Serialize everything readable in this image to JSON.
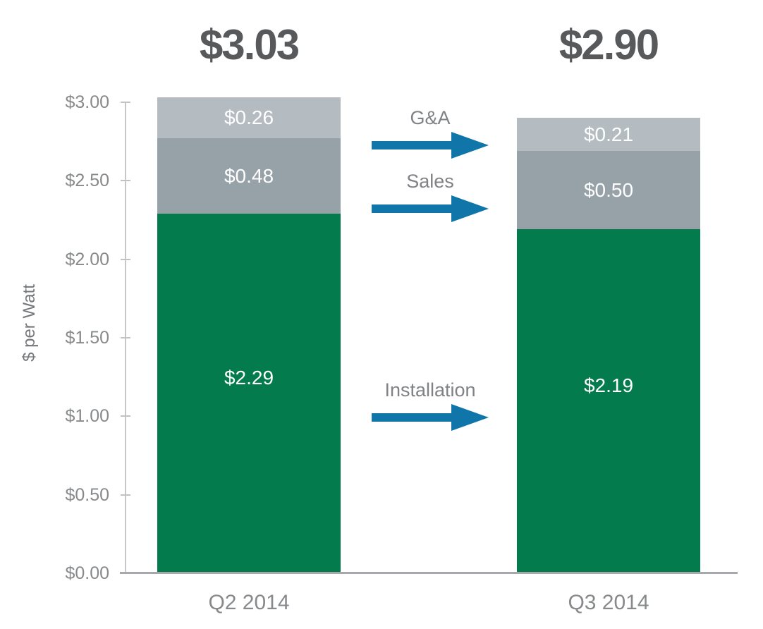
{
  "chart_data": {
    "type": "bar",
    "stacked": true,
    "ylabel": "$ per Watt",
    "ylim": [
      0,
      3.0
    ],
    "grid": false,
    "legend": "none",
    "categories": [
      "Q2 2014",
      "Q3 2014"
    ],
    "totals": [
      "$3.03",
      "$2.90"
    ],
    "series": [
      {
        "name": "Installation",
        "color": "#037b4c",
        "values": [
          2.29,
          2.19
        ],
        "value_labels": [
          "$2.29",
          "$2.19"
        ]
      },
      {
        "name": "Sales",
        "color": "#97a1a8",
        "values": [
          0.48,
          0.5
        ],
        "value_labels": [
          "$0.48",
          "$0.50"
        ]
      },
      {
        "name": "G&A",
        "color": "#b4bcc2",
        "values": [
          0.26,
          0.21
        ],
        "value_labels": [
          "$0.26",
          "$0.21"
        ]
      }
    ],
    "y_tick_labels": [
      "$3.00",
      "$2.50",
      "$2.00",
      "$1.50",
      "$1.00",
      "$0.50",
      "$0.00"
    ],
    "y_tick_values": [
      3.0,
      2.5,
      2.0,
      1.5,
      1.0,
      0.5,
      0.0
    ],
    "annotations": [
      {
        "label": "G&A"
      },
      {
        "label": "Sales"
      },
      {
        "label": "Installation"
      }
    ],
    "colors": {
      "arrow": "#1075a9",
      "total_text": "#58595b",
      "axis_text": "#87898b",
      "annotation_text": "#808285",
      "bar_value_text": "#ffffff",
      "axis_line": "#c5c7c9",
      "baseline": "#a6a8ab"
    }
  }
}
